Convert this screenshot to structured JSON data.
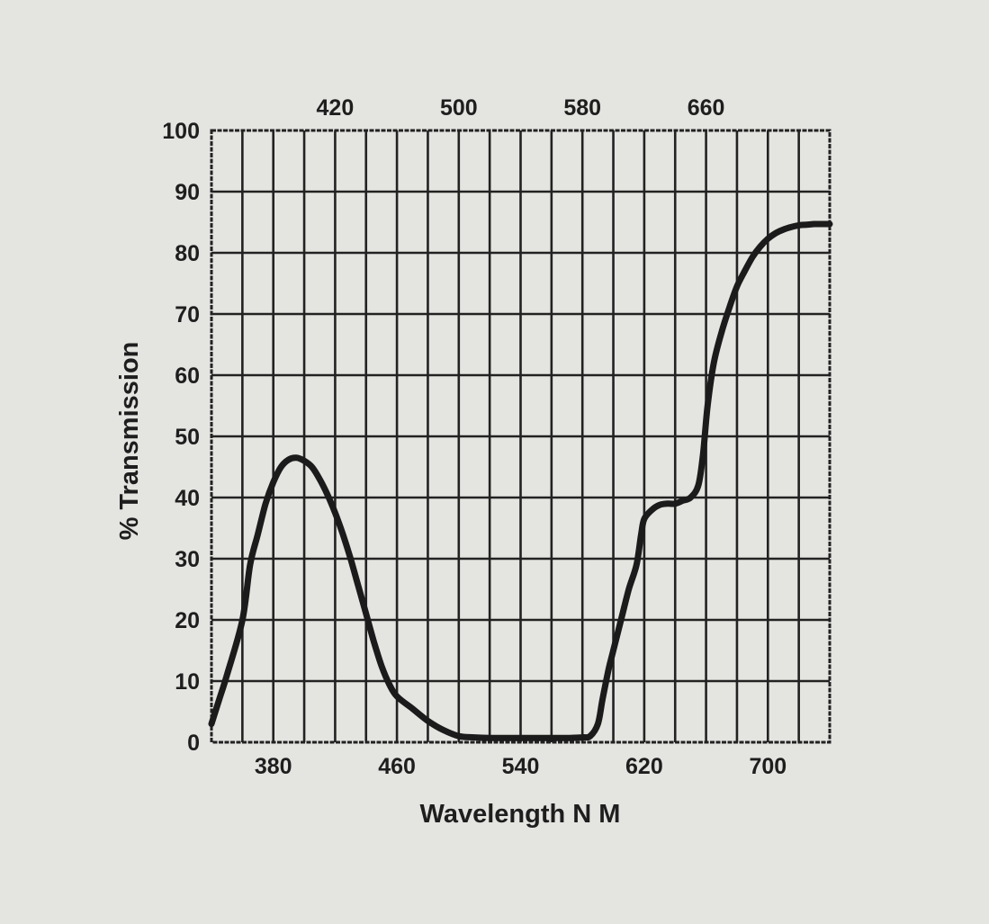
{
  "chart_data": {
    "type": "line",
    "xlabel": "Wavelength N M",
    "ylabel": "% Transmission",
    "xlim": [
      340,
      740
    ],
    "ylim": [
      0,
      100
    ],
    "grid": true,
    "x_ticks_bottom": [
      380,
      460,
      540,
      620,
      700
    ],
    "x_ticks_top": [
      420,
      500,
      580,
      660
    ],
    "y_ticks": [
      0,
      10,
      20,
      30,
      40,
      50,
      60,
      70,
      80,
      90,
      100
    ],
    "series": [
      {
        "x": [
          340,
          345,
          350,
          360,
          365,
          370,
          375,
          380,
          385,
          390,
          395,
          400,
          405,
          410,
          415,
          420,
          425,
          430,
          435,
          440,
          445,
          450,
          455,
          460,
          470,
          480,
          490,
          500,
          510,
          520,
          530,
          540,
          550,
          560,
          570,
          580,
          585,
          590,
          593,
          597,
          600,
          605,
          610,
          615,
          618,
          620,
          625,
          630,
          635,
          640,
          645,
          650,
          655,
          658,
          661,
          665,
          670,
          675,
          680,
          685,
          690,
          695,
          700,
          705,
          710,
          715,
          720,
          725,
          730,
          735,
          740
        ],
        "y": [
          3,
          7,
          11,
          20,
          29,
          34,
          39,
          42.5,
          45,
          46.2,
          46.5,
          46,
          45,
          43,
          40.5,
          37.5,
          34,
          30,
          25.5,
          21,
          16.5,
          12.5,
          9.5,
          7.5,
          5.5,
          3.5,
          2,
          1,
          0.8,
          0.7,
          0.7,
          0.7,
          0.7,
          0.7,
          0.7,
          0.8,
          1,
          3,
          7,
          12,
          15,
          20,
          25,
          29,
          34,
          36.5,
          38,
          38.8,
          39,
          39,
          39.5,
          40,
          42,
          47,
          55,
          62,
          67,
          71,
          74.5,
          77,
          79.3,
          81,
          82.3,
          83.2,
          83.8,
          84.2,
          84.5,
          84.6,
          84.7,
          84.7,
          84.7
        ]
      }
    ]
  }
}
